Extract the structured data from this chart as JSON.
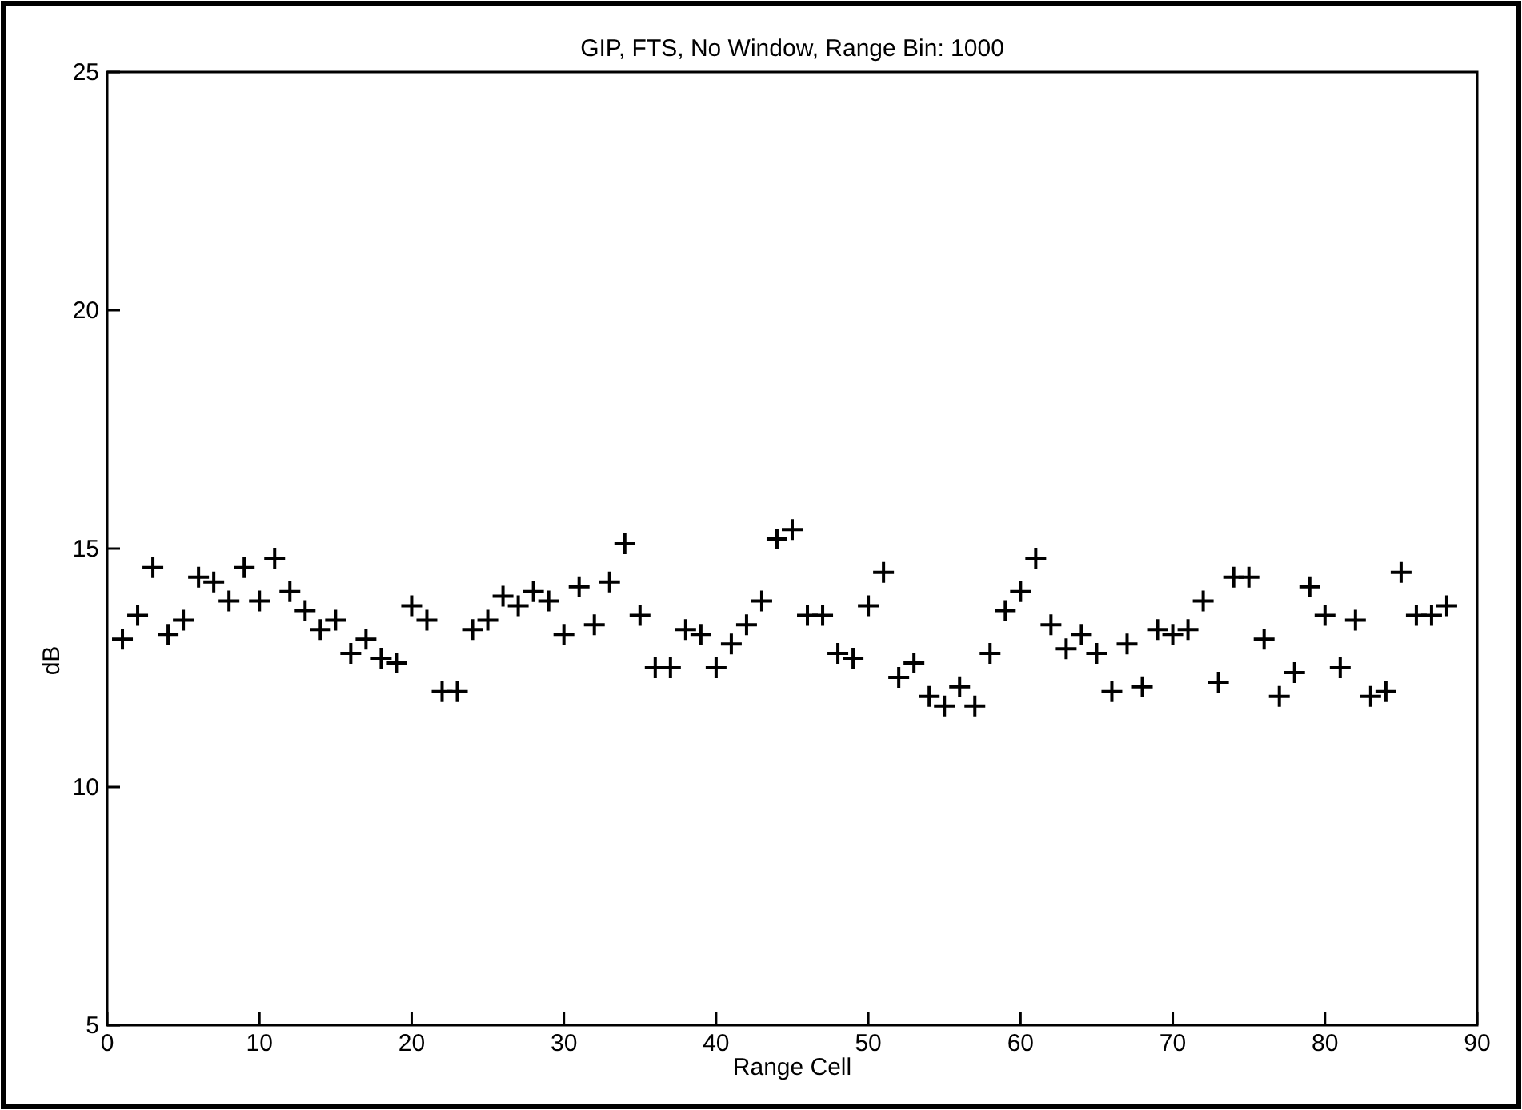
{
  "chart_data": {
    "type": "scatter",
    "title": "GIP, FTS, No Window, Range Bin: 1000",
    "xlabel": "Range Cell",
    "ylabel": "dB",
    "x": [
      1,
      2,
      3,
      4,
      5,
      6,
      7,
      8,
      9,
      10,
      11,
      12,
      13,
      14,
      15,
      16,
      17,
      18,
      19,
      20,
      21,
      22,
      23,
      24,
      25,
      26,
      27,
      28,
      29,
      30,
      31,
      32,
      33,
      34,
      35,
      36,
      37,
      38,
      39,
      40,
      41,
      42,
      43,
      44,
      45,
      46,
      47,
      48,
      49,
      50,
      51,
      52,
      53,
      54,
      55,
      56,
      57,
      58,
      59,
      60,
      61,
      62,
      63,
      64,
      65,
      66,
      67,
      68,
      69,
      70,
      71,
      72,
      73,
      74,
      75,
      76,
      77,
      78,
      79,
      80,
      81,
      82,
      83,
      84,
      85,
      86,
      87,
      88
    ],
    "series": [
      {
        "color": "#000000",
        "values": [
          13.1,
          13.6,
          14.6,
          13.2,
          13.5,
          14.4,
          14.3,
          13.9,
          14.6,
          13.9,
          14.8,
          14.1,
          13.7,
          13.3,
          13.5,
          12.8,
          13.1,
          12.7,
          12.6,
          13.8,
          13.5,
          12.0,
          12.0,
          13.3,
          13.5,
          14.0,
          13.8,
          14.1,
          13.9,
          13.2,
          14.2,
          13.4,
          14.3,
          15.1,
          13.6,
          12.5,
          12.5,
          13.3,
          13.2,
          12.5,
          13.0,
          13.4,
          13.9,
          15.2,
          15.4,
          13.6,
          13.6,
          12.8,
          12.7,
          13.8,
          14.5,
          12.3,
          12.6,
          11.9,
          11.7,
          12.1,
          11.7,
          12.8,
          13.7,
          14.1,
          14.8,
          13.4,
          12.9,
          13.2,
          12.8,
          12.0,
          13.0,
          12.1,
          13.3,
          13.2,
          13.3,
          13.9,
          12.2,
          14.4,
          14.4,
          13.1,
          11.9,
          12.4,
          14.2,
          13.6,
          12.5,
          13.5,
          11.9,
          12.0,
          14.5,
          13.6,
          13.6,
          13.8
        ]
      }
    ],
    "xlim": [
      0,
      90
    ],
    "xticks": [
      0,
      10,
      20,
      30,
      40,
      50,
      60,
      70,
      80,
      90
    ],
    "ylim": [
      5,
      25
    ],
    "yticks": [
      5,
      10,
      15,
      20,
      25
    ],
    "marker": "cross"
  }
}
